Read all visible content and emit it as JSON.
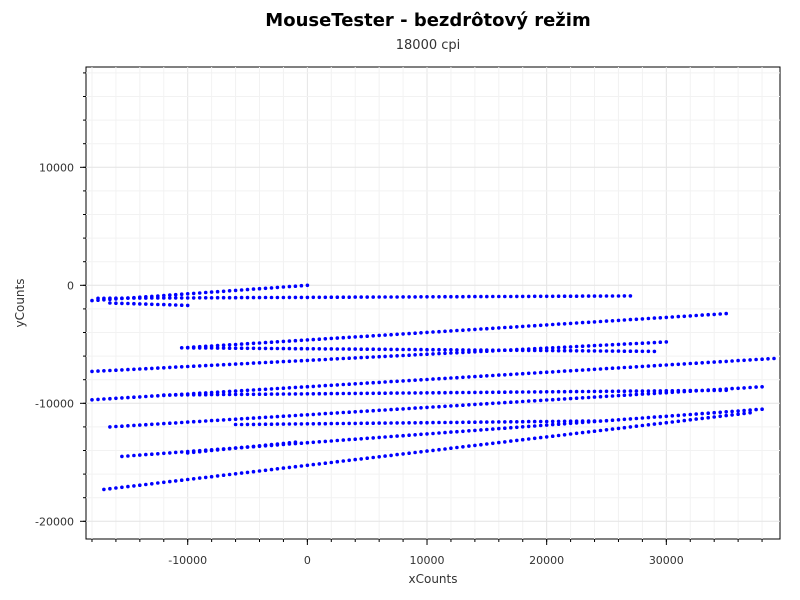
{
  "chart_data": {
    "type": "scatter",
    "title": "MouseTester - bezdrôtový režim",
    "subtitle": "18000 cpi",
    "xlabel": "xCounts",
    "ylabel": "yCounts",
    "xlim": [
      -18500,
      39500
    ],
    "ylim": [
      -21500,
      18500
    ],
    "xticks": [
      -10000,
      0,
      10000,
      20000,
      30000
    ],
    "yticks": [
      -20000,
      -10000,
      0,
      10000
    ],
    "grid": true,
    "marker_color": "#0000ff",
    "series": [
      {
        "strokes": [
          [
            [
              0,
              0
            ],
            [
              -18000,
              -1300
            ]
          ],
          [
            [
              -17500,
              -1100
            ],
            [
              27000,
              -900
            ]
          ],
          [
            [
              -16500,
              -1500
            ],
            [
              -10000,
              -1700
            ]
          ],
          [
            [
              -10500,
              -5300
            ],
            [
              35000,
              -2400
            ]
          ],
          [
            [
              -18000,
              -7300
            ],
            [
              30000,
              -4800
            ]
          ],
          [
            [
              -10000,
              -5300
            ],
            [
              29000,
              -5600
            ]
          ],
          [
            [
              -18000,
              -9700
            ],
            [
              39000,
              -6200
            ]
          ],
          [
            [
              -16500,
              -12000
            ],
            [
              38000,
              -8600
            ]
          ],
          [
            [
              -12000,
              -9300
            ],
            [
              35000,
              -8900
            ]
          ],
          [
            [
              -15500,
              -14500
            ],
            [
              38000,
              -10500
            ]
          ],
          [
            [
              -10000,
              -14200
            ],
            [
              -1000,
              -13300
            ]
          ],
          [
            [
              -17000,
              -17300
            ],
            [
              37000,
              -10800
            ]
          ],
          [
            [
              -6000,
              -11800
            ],
            [
              24000,
              -11500
            ]
          ]
        ]
      }
    ]
  }
}
